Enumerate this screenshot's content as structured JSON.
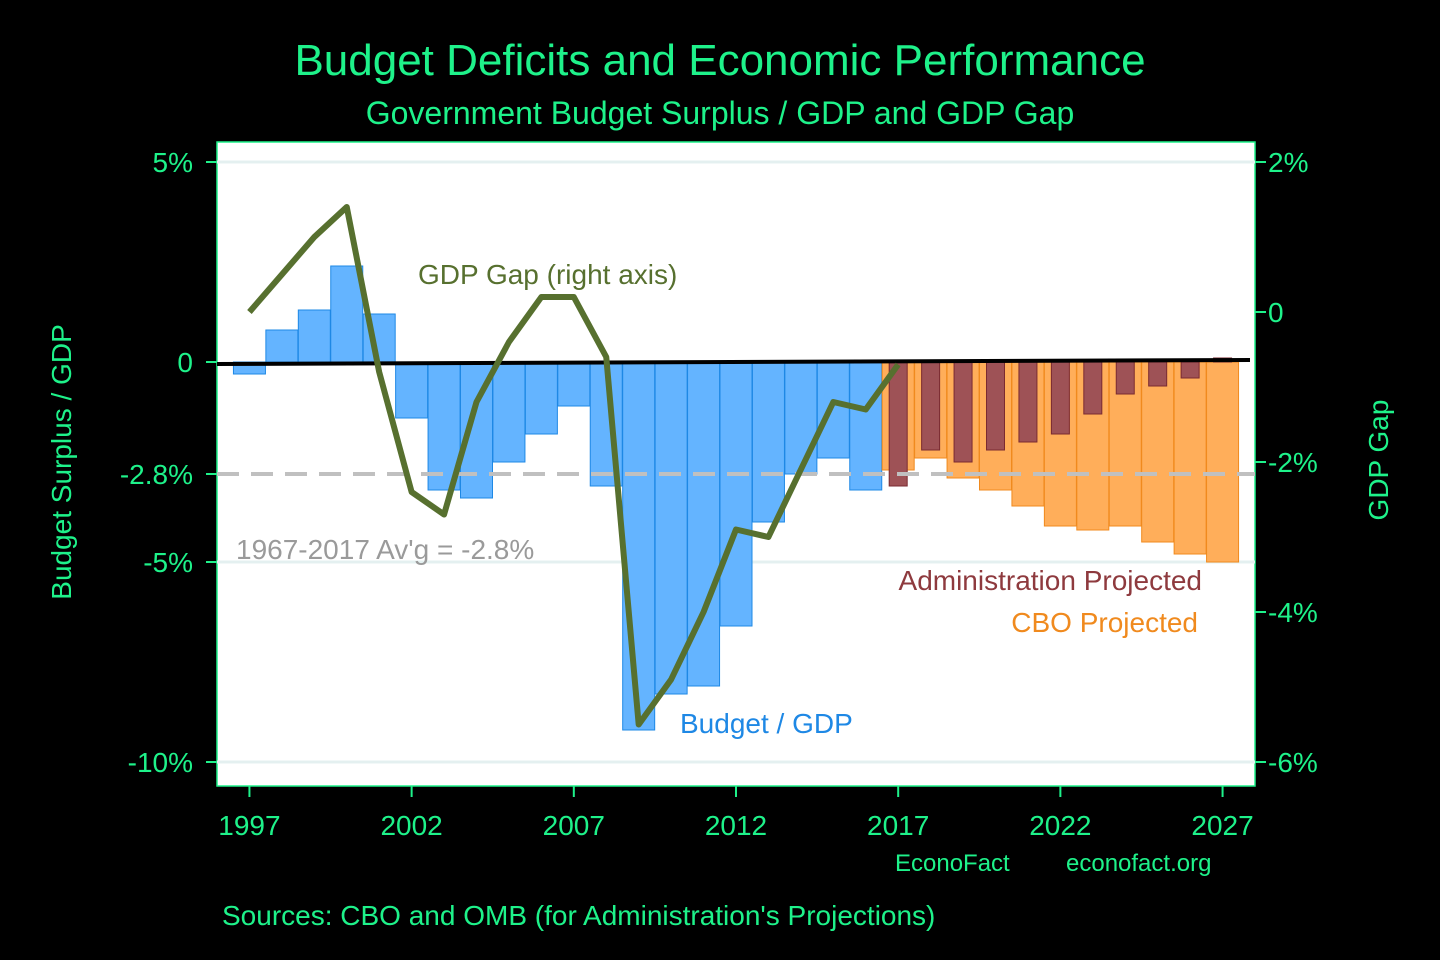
{
  "title": "Budget Deficits and Economic Performance",
  "subtitle": "Government Budget Surplus / GDP and GDP Gap",
  "sources": "Sources: CBO and OMB (for Administration's Projections)",
  "credits": {
    "name": "EconoFact",
    "url": "econofact.org"
  },
  "colors": {
    "background": "#000000",
    "text": "#1ef28a",
    "plot_bg": "#ffffff",
    "budget_bar": "#64b4ff",
    "budget_bar_edge": "#1e88e5",
    "cbo_bar": "#ffae5a",
    "cbo_bar_edge": "#f08a1e",
    "admin_bar": "#9e5256",
    "admin_bar_edge": "#7a2a30",
    "gdp_gap_line": "#57702f",
    "average_line": "#c0c0c0",
    "zero_line": "#000000"
  },
  "chart_data": {
    "type": "bar",
    "title": "Budget Deficits and Economic Performance",
    "subtitle": "Government Budget Surplus / GDP and GDP Gap",
    "ylabel": "Budget Surplus / GDP",
    "ylabel_right": "GDP Gap",
    "xlim": [
      1996,
      2028
    ],
    "ylim": [
      -10.5,
      5
    ],
    "ylim_right": [
      -6.2,
      2
    ],
    "x_ticks": [
      1997,
      2002,
      2007,
      2012,
      2017,
      2022,
      2027
    ],
    "y_ticks": [
      {
        "value": 5,
        "label": "5%"
      },
      {
        "value": 0,
        "label": "0"
      },
      {
        "value": -2.8,
        "label": "-2.8%"
      },
      {
        "value": -5,
        "label": "-5%"
      },
      {
        "value": -10,
        "label": "-10%"
      }
    ],
    "y_ticks_right": [
      {
        "value": 2,
        "label": "2%"
      },
      {
        "value": 0,
        "label": "0"
      },
      {
        "value": -2,
        "label": "-2%"
      },
      {
        "value": -4,
        "label": "-4%"
      },
      {
        "value": -6,
        "label": "-6%"
      }
    ],
    "grid": true,
    "series": [
      {
        "name": "Budget / GDP",
        "kind": "bar",
        "axis": "left",
        "x": [
          1997,
          1998,
          1999,
          2000,
          2001,
          2002,
          2003,
          2004,
          2005,
          2006,
          2007,
          2008,
          2009,
          2010,
          2011,
          2012,
          2013,
          2014,
          2015,
          2016
        ],
        "values": [
          -0.3,
          0.8,
          1.3,
          2.4,
          1.2,
          -1.4,
          -3.2,
          -3.4,
          -2.5,
          -1.8,
          -1.1,
          -3.1,
          -9.2,
          -8.3,
          -8.1,
          -6.6,
          -4.0,
          -2.8,
          -2.4,
          -3.2
        ]
      },
      {
        "name": "CBO Projected",
        "kind": "bar",
        "axis": "left",
        "x": [
          2017,
          2018,
          2019,
          2020,
          2021,
          2022,
          2023,
          2024,
          2025,
          2026,
          2027
        ],
        "values": [
          -2.7,
          -2.4,
          -2.9,
          -3.2,
          -3.6,
          -4.1,
          -4.2,
          -4.1,
          -4.5,
          -4.8,
          -5.0
        ]
      },
      {
        "name": "Administration Projected",
        "kind": "bar",
        "axis": "left",
        "x": [
          2017,
          2018,
          2019,
          2020,
          2021,
          2022,
          2023,
          2024,
          2025,
          2026,
          2027
        ],
        "values": [
          -3.1,
          -2.2,
          -2.5,
          -2.2,
          -2.0,
          -1.8,
          -1.3,
          -0.8,
          -0.6,
          -0.4,
          0.1
        ]
      },
      {
        "name": "GDP Gap (right axis)",
        "kind": "line",
        "axis": "right",
        "x": [
          1997,
          1998,
          1999,
          2000,
          2001,
          2002,
          2003,
          2004,
          2005,
          2006,
          2007,
          2008,
          2009,
          2010,
          2011,
          2012,
          2013,
          2014,
          2015,
          2016,
          2017
        ],
        "values": [
          0.0,
          0.5,
          1.0,
          1.4,
          -0.8,
          -2.4,
          -2.7,
          -1.2,
          -0.4,
          0.2,
          0.2,
          -0.6,
          -5.5,
          -4.9,
          -4.0,
          -2.9,
          -3.0,
          -2.1,
          -1.2,
          -1.3,
          -0.7
        ]
      }
    ],
    "reference_line": {
      "value": -2.8,
      "label": "1967-2017 Av'g = -2.8%",
      "style": "dashed"
    },
    "annotations": [
      {
        "text": "GDP Gap (right axis)",
        "series": "GDP Gap (right axis)"
      },
      {
        "text": "Budget / GDP",
        "series": "Budget / GDP"
      },
      {
        "text": "Administration Projected",
        "series": "Administration Projected"
      },
      {
        "text": "CBO Projected",
        "series": "CBO Projected"
      }
    ]
  }
}
